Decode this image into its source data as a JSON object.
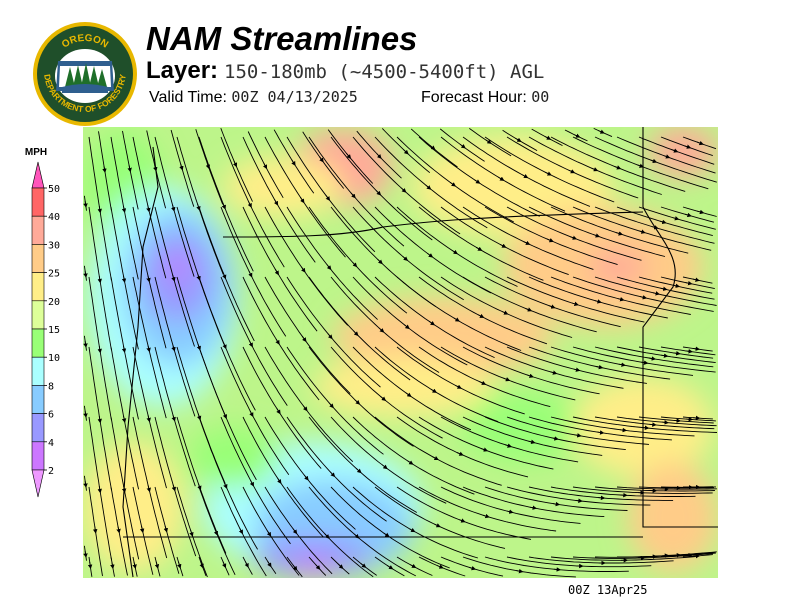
{
  "logo": {
    "top_text": "OREGON",
    "bottom_text": "DEPARTMENT OF FORESTRY",
    "colors": {
      "ring": "#1f4f2a",
      "border": "#e8b800"
    }
  },
  "header": {
    "title": "NAM Streamlines",
    "layer_label": "Layer:",
    "layer_value": "150-180mb (~4500-5400ft) AGL",
    "valid_time_label": "Valid Time:",
    "valid_time_value": "00Z 04/13/2025",
    "forecast_hour_label": "Forecast Hour:",
    "forecast_hour_value": "00"
  },
  "legend": {
    "unit": "MPH",
    "levels": [
      {
        "label": "50",
        "color": "#ff6666"
      },
      {
        "label": "40",
        "color": "#ffaa99"
      },
      {
        "label": "30",
        "color": "#ffcc88"
      },
      {
        "label": "25",
        "color": "#ffee88"
      },
      {
        "label": "20",
        "color": "#ddff99"
      },
      {
        "label": "15",
        "color": "#99ff77"
      },
      {
        "label": "10",
        "color": "#aaffff"
      },
      {
        "label": "8",
        "color": "#88ccff"
      },
      {
        "label": "6",
        "color": "#9999ff"
      },
      {
        "label": "4",
        "color": "#cc77ff"
      },
      {
        "label": "2",
        "color": null
      }
    ],
    "over_color": "#ff55bb",
    "under_color": "#ee99ff"
  },
  "map": {
    "field": "wind speed with streamlines"
  },
  "footer": {
    "stamp": "00Z 13Apr25"
  }
}
